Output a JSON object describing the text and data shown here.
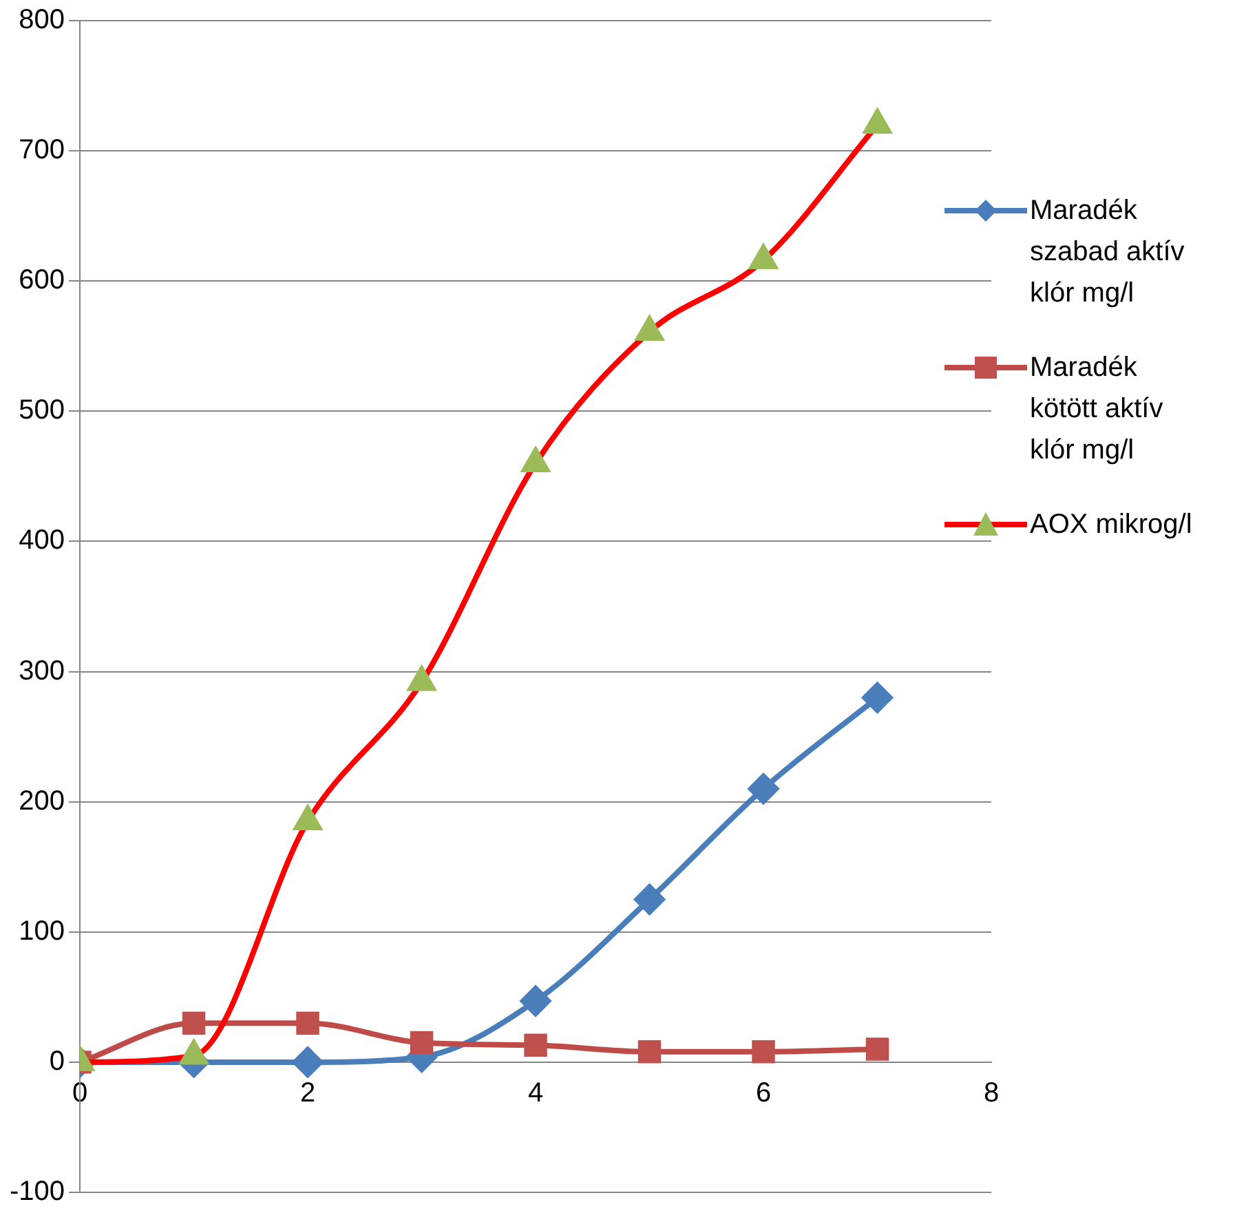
{
  "chart_data": {
    "type": "line",
    "x": [
      0,
      1,
      2,
      3,
      4,
      5,
      6,
      7
    ],
    "series": [
      {
        "name": "Maradék szabad aktív klór mg/l",
        "color": "#4a7ebb",
        "marker": "diamond",
        "values": [
          0,
          0,
          0,
          4,
          47,
          125,
          210,
          280
        ]
      },
      {
        "name": "Maradék kötött aktív klór mg/l",
        "color": "#be4b48",
        "marker": "square",
        "values": [
          0,
          30,
          30,
          15,
          13,
          8,
          8,
          10
        ]
      },
      {
        "name": "AOX mikrog/l",
        "color": "#ff0000",
        "marker": "triangle",
        "values": [
          0,
          5,
          185,
          292,
          460,
          561,
          616,
          720
        ]
      }
    ],
    "xlim": [
      0,
      8
    ],
    "xticks": [
      0,
      2,
      4,
      6,
      8
    ],
    "ylim": [
      -100,
      800
    ],
    "yticks": [
      -100,
      0,
      100,
      200,
      300,
      400,
      500,
      600,
      700,
      800
    ],
    "grid": "y",
    "legend": "right"
  }
}
